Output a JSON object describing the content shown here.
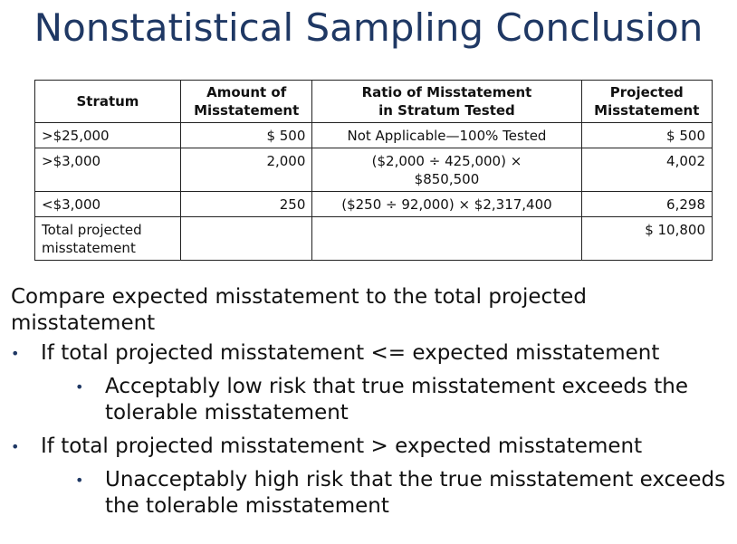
{
  "title": "Nonstatistical Sampling Conclusion",
  "table": {
    "headers": [
      [
        "Stratum"
      ],
      [
        "Amount of",
        "Misstatement"
      ],
      [
        "Ratio of Misstatement",
        "in Stratum Tested"
      ],
      [
        "Projected",
        "Misstatement"
      ]
    ],
    "rows": [
      {
        "stratum": ">$25,000",
        "amount": "$ 500",
        "ratio": "Not Applicable—100% Tested",
        "projected": "$ 500"
      },
      {
        "stratum": ">$3,000",
        "amount": "2,000",
        "ratio": "($2,000 ÷ 425,000) × $850,500",
        "projected": "4,002"
      },
      {
        "stratum": "<$3,000",
        "amount": "250",
        "ratio": "($250 ÷ 92,000) × $2,317,400",
        "projected": "6,298"
      },
      {
        "stratum": "Total projected misstatement",
        "amount": "",
        "ratio": "",
        "projected": "$ 10,800"
      }
    ]
  },
  "bullets": {
    "intro": "Compare expected misstatement to the total projected misstatement",
    "items": [
      {
        "text": "If total projected misstatement <= expected misstatement",
        "sub": "Acceptably low risk that true misstatement exceeds the tolerable misstatement"
      },
      {
        "text": "If total projected misstatement > expected misstatement",
        "sub": "Unacceptably high risk that the true misstatement exceeds the tolerable misstatement"
      }
    ],
    "bullet_glyph": "•"
  },
  "colors": {
    "title": "#1f3864",
    "text": "#111111",
    "border": "#222222"
  }
}
